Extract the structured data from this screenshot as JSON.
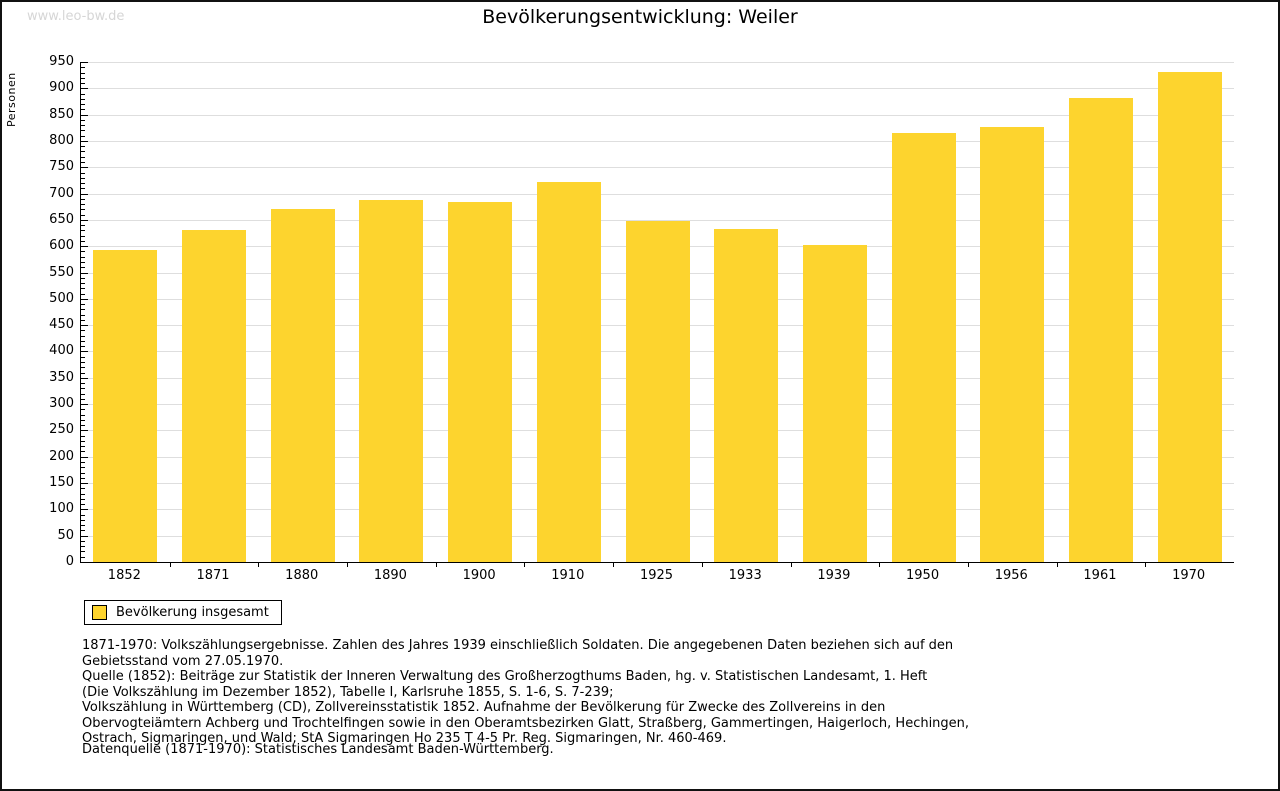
{
  "page": {
    "watermark": "www.leo-bw.de",
    "title": "Bevölkerungsentwicklung: Weiler"
  },
  "chart_data": {
    "type": "bar",
    "title": "Bevölkerungsentwicklung: Weiler",
    "xlabel": "",
    "ylabel": "Personen",
    "categories": [
      "1852",
      "1871",
      "1880",
      "1890",
      "1900",
      "1910",
      "1925",
      "1933",
      "1939",
      "1950",
      "1956",
      "1961",
      "1970"
    ],
    "values": [
      593,
      630,
      671,
      688,
      684,
      722,
      647,
      633,
      602,
      816,
      827,
      881,
      931
    ],
    "ylim": [
      0,
      950
    ],
    "y_major_step": 50,
    "y_minor_step": 10,
    "grid": "horizontal",
    "legend_position": "bottom-left",
    "bar_color": "#FDD42E",
    "gridline_color": "#dedede"
  },
  "legend": {
    "label": "Bevölkerung insgesamt",
    "swatch_color": "#FDD42E"
  },
  "footer": {
    "lines": [
      "1871-1970: Volkszählungsergebnisse. Zahlen des Jahres 1939 einschließlich Soldaten. Die angegebenen Daten beziehen sich auf den",
      "Gebietsstand vom 27.05.1970.",
      "Quelle (1852): Beiträge zur Statistik der Inneren Verwaltung des Großherzogthums Baden, hg. v. Statistischen Landesamt, 1. Heft",
      "(Die Volkszählung im Dezember 1852), Tabelle I, Karlsruhe 1855, S. 1-6, S. 7-239;",
      "Volkszählung in Württemberg (CD), Zollvereinsstatistik 1852. Aufnahme der Bevölkerung für Zwecke des Zollvereins in den",
      "Obervogteiämtern Achberg und Trochtelfingen sowie in den Oberamtsbezirken Glatt, Straßberg, Gammertingen, Haigerloch, Hechingen,",
      "Ostrach, Sigmaringen, und Wald; StA Sigmaringen Ho 235 T 4-5 Pr. Reg. Sigmaringen, Nr. 460-469."
    ],
    "datasource": "Datenquelle (1871-1970): Statistisches Landesamt Baden-Württemberg."
  }
}
